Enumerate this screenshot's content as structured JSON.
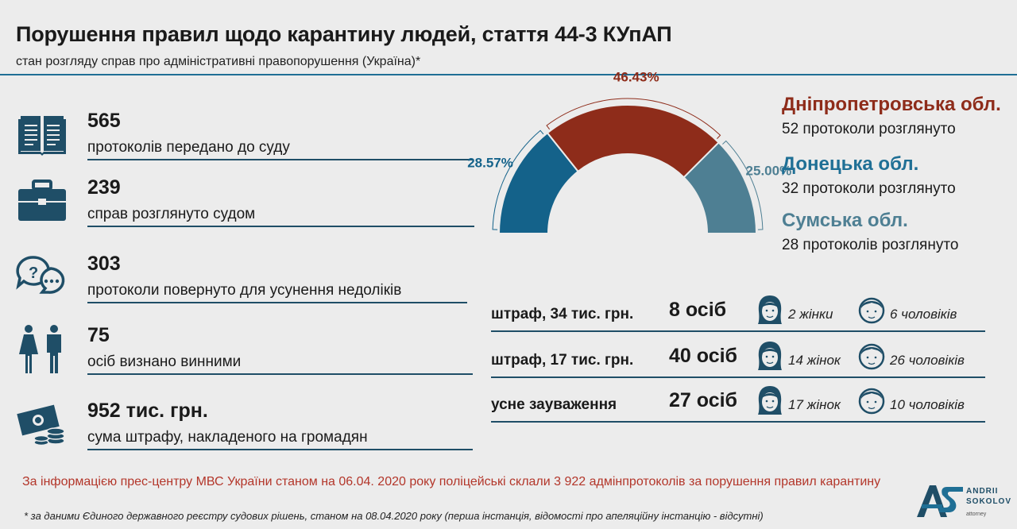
{
  "header": {
    "title": "Порушення правил щодо карантину людей, стаття 44-3 КУпАП",
    "subtitle": "стан розгляду справ про адміністративні правопорушення (Україна)*"
  },
  "stats": [
    {
      "value": "565",
      "label": "протоколів передано до суду",
      "icon": "book-icon"
    },
    {
      "value": "239",
      "label": "справ розглянуто судом",
      "icon": "briefcase-icon"
    },
    {
      "value": "303",
      "label": "протоколи повернуто для усунення недоліків",
      "icon": "speech-bubbles-icon"
    },
    {
      "value": "75",
      "label": "осіб визнано винними",
      "icon": "people-icon"
    },
    {
      "value": "952 тис. грн.",
      "label": "сума штрафу, накладеного на громадян",
      "icon": "money-icon"
    }
  ],
  "chart_data": {
    "type": "pie",
    "style": "half-donut",
    "slices": [
      {
        "label": "Донецька обл.",
        "value": 28.57,
        "display": "28.57%",
        "color": "#14628a"
      },
      {
        "label": "Дніпропетровська обл.",
        "value": 46.43,
        "display": "46.43%",
        "color": "#8e2c1a"
      },
      {
        "label": "Сумська обл.",
        "value": 25.0,
        "display": "25.00%",
        "color": "#4e7f93"
      }
    ]
  },
  "regions": [
    {
      "name": "Дніпропетровська обл.",
      "detail": "52 протоколи розглянуто",
      "color": "#8e2c1a"
    },
    {
      "name": "Донецька обл.",
      "detail": "32 протоколи розглянуто",
      "color": "#1f6f95"
    },
    {
      "name": "Сумська обл.",
      "detail": "28 протоколів розглянуто",
      "color": "#4e7f93"
    }
  ],
  "penalties": [
    {
      "type": "штраф, 34 тис. грн.",
      "count": "8 осіб",
      "women": "2 жінки",
      "men": "6 чоловіків"
    },
    {
      "type": "штраф, 17 тис. грн.",
      "count": "40 осіб",
      "women": "14 жінок",
      "men": "26 чоловіків"
    },
    {
      "type": "усне зауваження",
      "count": "27 осіб",
      "women": "17 жінок",
      "men": "10 чоловіків"
    }
  ],
  "source_note": "За інформацією прес-центру МВС України станом на 06.04. 2020 року поліцейські склали 3 922 адмінпротоколів за порушення правил карантину",
  "footnote": "* за даними Єдиного державного реєстру судових рішень, станом на 08.04.2020 року (перша інстанція, відомості про апеляційну інстанцію - відсутні)",
  "logo": {
    "line1": "ANDRII",
    "line2": "SOKOLOV",
    "line3": "attorney"
  },
  "colors": {
    "primary": "#1f6f95",
    "dark": "#1f4e67",
    "accent": "#8e2c1a",
    "muted": "#4e7f93",
    "background": "#ececec"
  }
}
